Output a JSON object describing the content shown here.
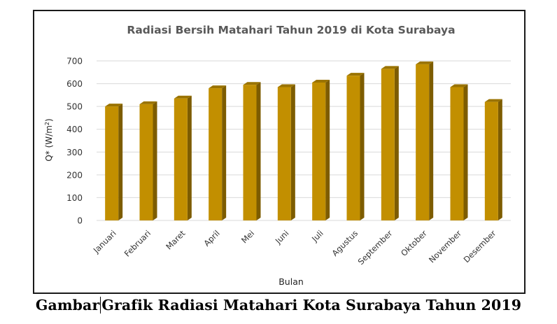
{
  "chart_data": {
    "type": "bar",
    "title": "Radiasi Bersih Matahari Tahun 2019 di Kota Surabaya",
    "xlabel": "Bulan",
    "ylabel": "Q* (W/m2)",
    "ylim": [
      0,
      700
    ],
    "yticks": [
      0,
      100,
      200,
      300,
      400,
      500,
      600,
      700
    ],
    "grid": true,
    "categories": [
      "Januari",
      "Februari",
      "Maret",
      "April",
      "Mei",
      "Juni",
      "Juli",
      "Agustus",
      "September",
      "Oktober",
      "November",
      "Desember"
    ],
    "values": [
      500,
      510,
      535,
      580,
      595,
      585,
      605,
      635,
      665,
      685,
      585,
      520
    ],
    "bar_color": "#c28f00",
    "bar_side_color": "#7d5c00",
    "bar_top_color": "#9a7300"
  },
  "caption": {
    "prefix": "Gambar",
    "text": "Grafik Radiasi Matahari Kota Surabaya Tahun 2019"
  }
}
